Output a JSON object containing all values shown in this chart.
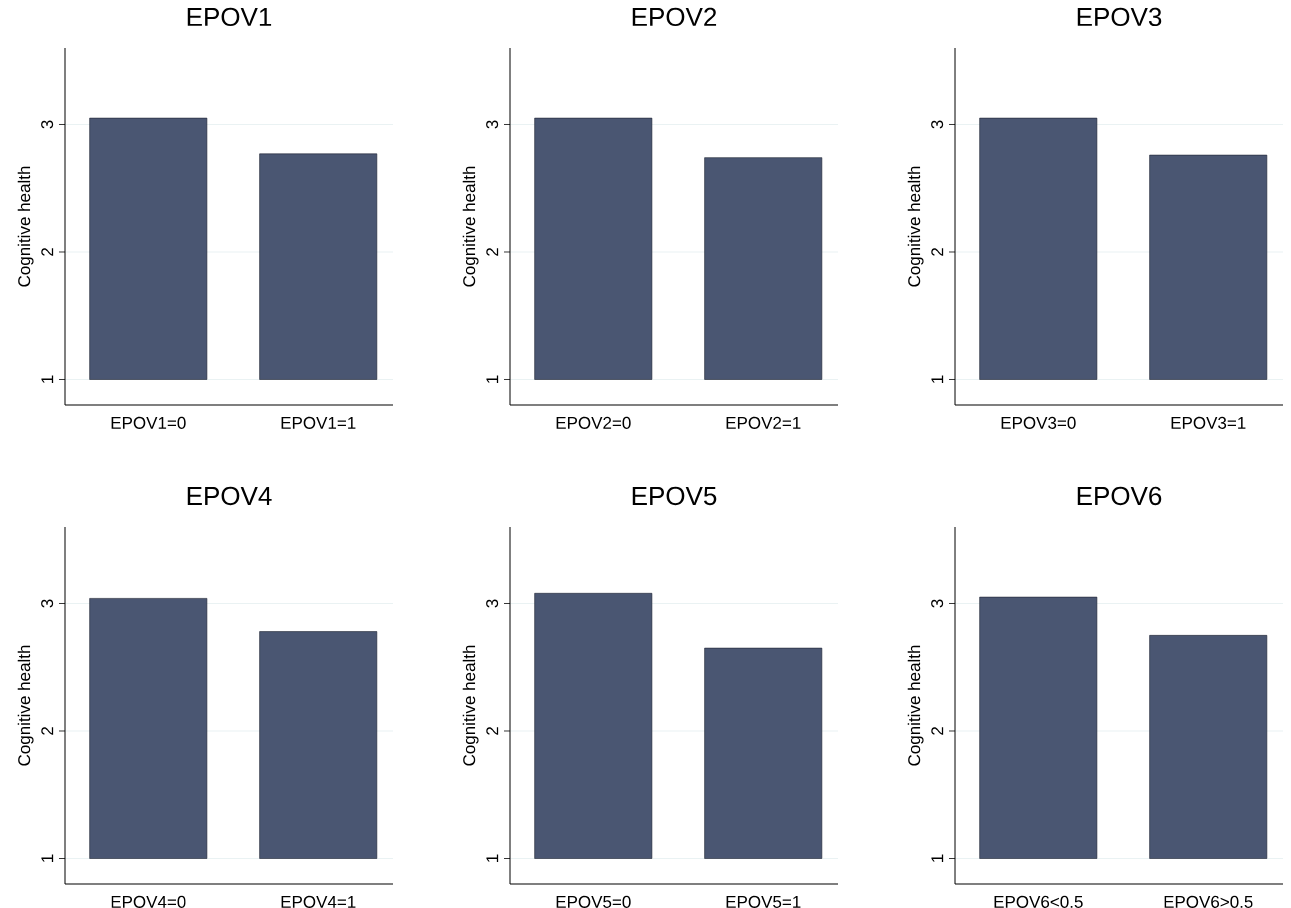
{
  "chart_data": [
    {
      "type": "bar",
      "title": "EPOV1",
      "ylabel": "Cognitive health",
      "categories": [
        "EPOV1=0",
        "EPOV1=1"
      ],
      "base": [
        1,
        1
      ],
      "values": [
        2.05,
        1.77
      ],
      "color": "#4a5672",
      "ylim": [
        0.8,
        3.6
      ],
      "yticks": [
        1,
        2,
        3
      ],
      "grid": "y"
    },
    {
      "type": "bar",
      "title": "EPOV2",
      "ylabel": "Cognitive health",
      "categories": [
        "EPOV2=0",
        "EPOV2=1"
      ],
      "base": [
        1,
        1
      ],
      "values": [
        2.05,
        1.74
      ],
      "color": "#4a5672",
      "ylim": [
        0.8,
        3.6
      ],
      "yticks": [
        1,
        2,
        3
      ],
      "grid": "y"
    },
    {
      "type": "bar",
      "title": "EPOV3",
      "ylabel": "Cognitive health",
      "categories": [
        "EPOV3=0",
        "EPOV3=1"
      ],
      "base": [
        1,
        1
      ],
      "values": [
        2.05,
        1.76
      ],
      "color": "#4a5672",
      "ylim": [
        0.8,
        3.6
      ],
      "yticks": [
        1,
        2,
        3
      ],
      "grid": "y"
    },
    {
      "type": "bar",
      "title": "EPOV4",
      "ylabel": "Cognitive health",
      "categories": [
        "EPOV4=0",
        "EPOV4=1"
      ],
      "base": [
        1,
        1
      ],
      "values": [
        2.04,
        1.78
      ],
      "color": "#4a5672",
      "ylim": [
        0.8,
        3.6
      ],
      "yticks": [
        1,
        2,
        3
      ],
      "grid": "y"
    },
    {
      "type": "bar",
      "title": "EPOV5",
      "ylabel": "Cognitive health",
      "categories": [
        "EPOV5=0",
        "EPOV5=1"
      ],
      "base": [
        1,
        1
      ],
      "values": [
        2.08,
        1.65
      ],
      "color": "#4a5672",
      "ylim": [
        0.8,
        3.6
      ],
      "yticks": [
        1,
        2,
        3
      ],
      "grid": "y"
    },
    {
      "type": "bar",
      "title": "EPOV6",
      "ylabel": "Cognitive health",
      "categories": [
        "EPOV6<0.5",
        "EPOV6>0.5"
      ],
      "base": [
        1,
        1
      ],
      "values": [
        2.05,
        1.75
      ],
      "color": "#4a5672",
      "ylim": [
        0.8,
        3.6
      ],
      "yticks": [
        1,
        2,
        3
      ],
      "grid": "y"
    }
  ]
}
